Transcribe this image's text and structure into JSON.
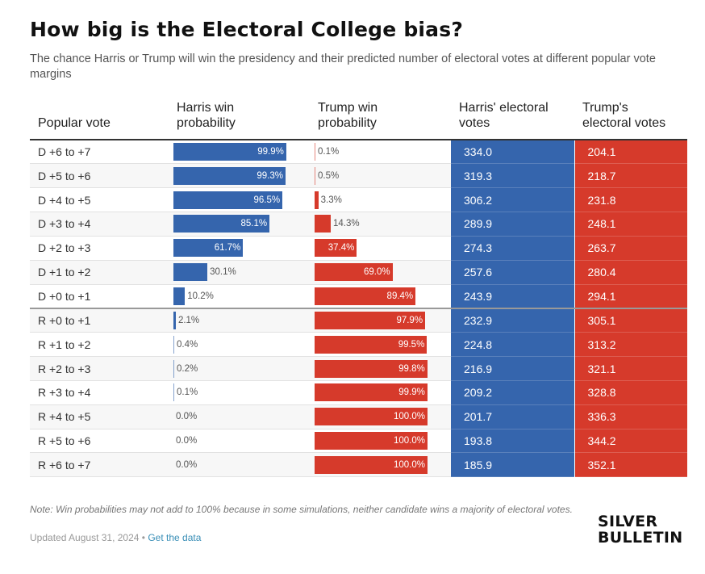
{
  "title": "How big is the Electoral College bias?",
  "subtitle": "The chance Harris or Trump will win the presidency and their predicted number of electoral votes at different popular vote margins",
  "headers": {
    "popular_vote": "Popular vote",
    "harris_win": "Harris win probability",
    "trump_win": "Trump win probability",
    "harris_ev": "Harris' electoral votes",
    "trump_ev": "Trump's electoral votes"
  },
  "colors": {
    "harris": "#3565ad",
    "trump": "#d63a2b"
  },
  "chart_data": {
    "type": "table",
    "columns": [
      "Popular vote",
      "Harris win probability",
      "Trump win probability",
      "Harris' electoral votes",
      "Trump's electoral votes"
    ],
    "rows": [
      {
        "margin": "D +6 to +7",
        "harris_pct": 99.9,
        "trump_pct": 0.1,
        "harris_label": "99.9%",
        "trump_label": "0.1%",
        "harris_ev": "334.0",
        "trump_ev": "204.1"
      },
      {
        "margin": "D +5 to +6",
        "harris_pct": 99.3,
        "trump_pct": 0.5,
        "harris_label": "99.3%",
        "trump_label": "0.5%",
        "harris_ev": "319.3",
        "trump_ev": "218.7"
      },
      {
        "margin": "D +4 to +5",
        "harris_pct": 96.5,
        "trump_pct": 3.3,
        "harris_label": "96.5%",
        "trump_label": "3.3%",
        "harris_ev": "306.2",
        "trump_ev": "231.8"
      },
      {
        "margin": "D +3 to +4",
        "harris_pct": 85.1,
        "trump_pct": 14.3,
        "harris_label": "85.1%",
        "trump_label": "14.3%",
        "harris_ev": "289.9",
        "trump_ev": "248.1"
      },
      {
        "margin": "D +2 to +3",
        "harris_pct": 61.7,
        "trump_pct": 37.4,
        "harris_label": "61.7%",
        "trump_label": "37.4%",
        "harris_ev": "274.3",
        "trump_ev": "263.7"
      },
      {
        "margin": "D +1 to +2",
        "harris_pct": 30.1,
        "trump_pct": 69.0,
        "harris_label": "30.1%",
        "trump_label": "69.0%",
        "harris_ev": "257.6",
        "trump_ev": "280.4"
      },
      {
        "margin": "D +0 to +1",
        "harris_pct": 10.2,
        "trump_pct": 89.4,
        "harris_label": "10.2%",
        "trump_label": "89.4%",
        "harris_ev": "243.9",
        "trump_ev": "294.1"
      },
      {
        "margin": "R +0 to +1",
        "harris_pct": 2.1,
        "trump_pct": 97.9,
        "harris_label": "2.1%",
        "trump_label": "97.9%",
        "harris_ev": "232.9",
        "trump_ev": "305.1"
      },
      {
        "margin": "R +1 to +2",
        "harris_pct": 0.4,
        "trump_pct": 99.5,
        "harris_label": "0.4%",
        "trump_label": "99.5%",
        "harris_ev": "224.8",
        "trump_ev": "313.2"
      },
      {
        "margin": "R +2 to +3",
        "harris_pct": 0.2,
        "trump_pct": 99.8,
        "harris_label": "0.2%",
        "trump_label": "99.8%",
        "harris_ev": "216.9",
        "trump_ev": "321.1"
      },
      {
        "margin": "R +3 to +4",
        "harris_pct": 0.1,
        "trump_pct": 99.9,
        "harris_label": "0.1%",
        "trump_label": "99.9%",
        "harris_ev": "209.2",
        "trump_ev": "328.8"
      },
      {
        "margin": "R +4 to +5",
        "harris_pct": 0.0,
        "trump_pct": 100.0,
        "harris_label": "0.0%",
        "trump_label": "100.0%",
        "harris_ev": "201.7",
        "trump_ev": "336.3"
      },
      {
        "margin": "R +5 to +6",
        "harris_pct": 0.0,
        "trump_pct": 100.0,
        "harris_label": "0.0%",
        "trump_label": "100.0%",
        "harris_ev": "193.8",
        "trump_ev": "344.2"
      },
      {
        "margin": "R +6 to +7",
        "harris_pct": 0.0,
        "trump_pct": 100.0,
        "harris_label": "0.0%",
        "trump_label": "100.0%",
        "harris_ev": "185.9",
        "trump_ev": "352.1"
      }
    ]
  },
  "footer": {
    "note": "Note: Win probabilities may not add to 100% because in some simulations, neither candidate wins a majority of electoral votes.",
    "updated": "Updated August 31, 2024",
    "separator": " • ",
    "link": "Get the data",
    "logo_line1": "SILVER",
    "logo_line2": "BULLETIN"
  }
}
